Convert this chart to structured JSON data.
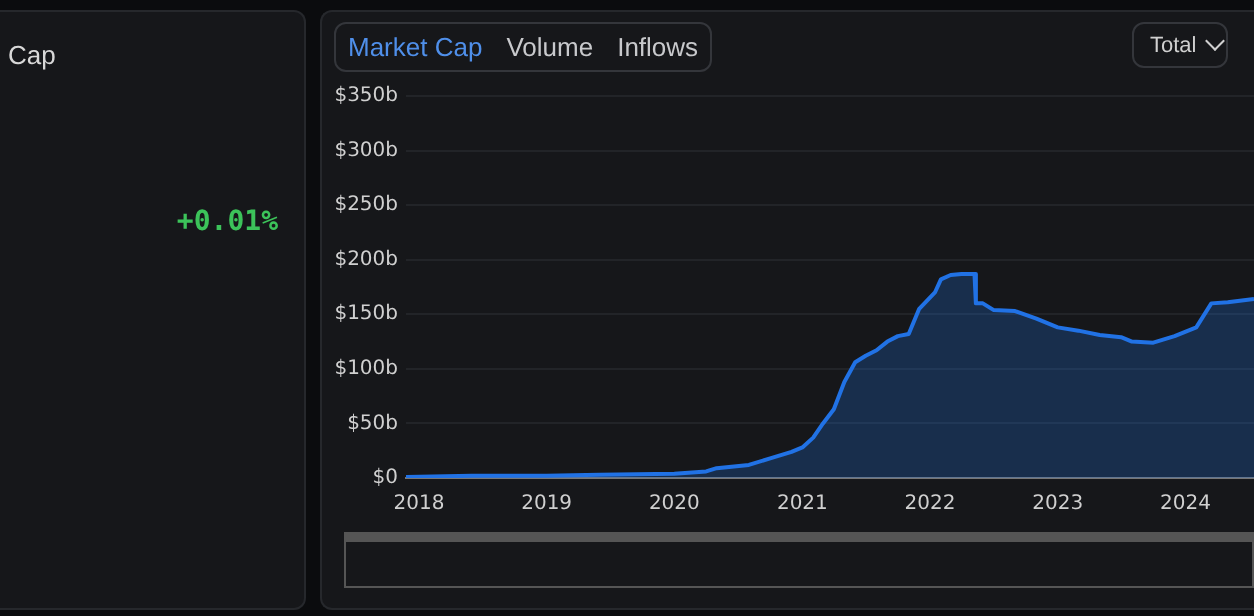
{
  "chart_data": {
    "type": "area",
    "x": [
      "2017-11-25",
      "2018-06-01",
      "2019-01-01",
      "2019-06-01",
      "2020-01-01",
      "2020-04-01",
      "2020-05-01",
      "2020-08-01",
      "2020-10-01",
      "2020-12-01",
      "2021-01-01",
      "2021-02-01",
      "2021-03-01",
      "2021-04-01",
      "2021-05-01",
      "2021-06-01",
      "2021-07-01",
      "2021-08-01",
      "2021-09-01",
      "2021-10-01",
      "2021-11-01",
      "2021-12-01",
      "2022-01-15",
      "2022-02-01",
      "2022-03-01",
      "2022-04-01",
      "2022-05-08",
      "2022-05-12",
      "2022-06-01",
      "2022-07-01",
      "2022-09-01",
      "2022-11-01",
      "2023-01-01",
      "2023-03-01",
      "2023-05-01",
      "2023-07-01",
      "2023-08-01",
      "2023-10-01",
      "2023-12-01",
      "2024-02-01",
      "2024-03-15",
      "2024-05-01",
      "2024-07-15"
    ],
    "series": [
      {
        "color": "#2172e5",
        "values": [
          1,
          2,
          2,
          3,
          4,
          6,
          9,
          12,
          18,
          24,
          28,
          37,
          50,
          63,
          88,
          106,
          112,
          117,
          125,
          130,
          132,
          155,
          170,
          182,
          186,
          187,
          187,
          160,
          160,
          154,
          153,
          146,
          138,
          135,
          131,
          129,
          125,
          124,
          130,
          138,
          160,
          161,
          164
        ]
      }
    ],
    "xlim": [
      "2017-11-25",
      "2024-07-15"
    ],
    "xticks": [
      {
        "value": "2018-01-01",
        "label": "2018"
      },
      {
        "value": "2019-01-01",
        "label": "2019"
      },
      {
        "value": "2020-01-01",
        "label": "2020"
      },
      {
        "value": "2021-01-01",
        "label": "2021"
      },
      {
        "value": "2022-01-01",
        "label": "2022"
      },
      {
        "value": "2023-01-01",
        "label": "2023"
      },
      {
        "value": "2024-01-01",
        "label": "2024"
      }
    ],
    "ylim": [
      0,
      350
    ],
    "yticks": [
      {
        "value": 0,
        "label": "$0"
      },
      {
        "value": 50,
        "label": "$50b"
      },
      {
        "value": 100,
        "label": "$100b"
      },
      {
        "value": 150,
        "label": "$150b"
      },
      {
        "value": 200,
        "label": "$200b"
      },
      {
        "value": 250,
        "label": "$250b"
      },
      {
        "value": 300,
        "label": "$300b"
      },
      {
        "value": 350,
        "label": "$350b"
      }
    ],
    "grid": "y",
    "legend": false,
    "annotations": [
      "Cap",
      "+0.01%",
      "Market Cap",
      "Volume",
      "Inflows",
      "Total"
    ]
  }
}
